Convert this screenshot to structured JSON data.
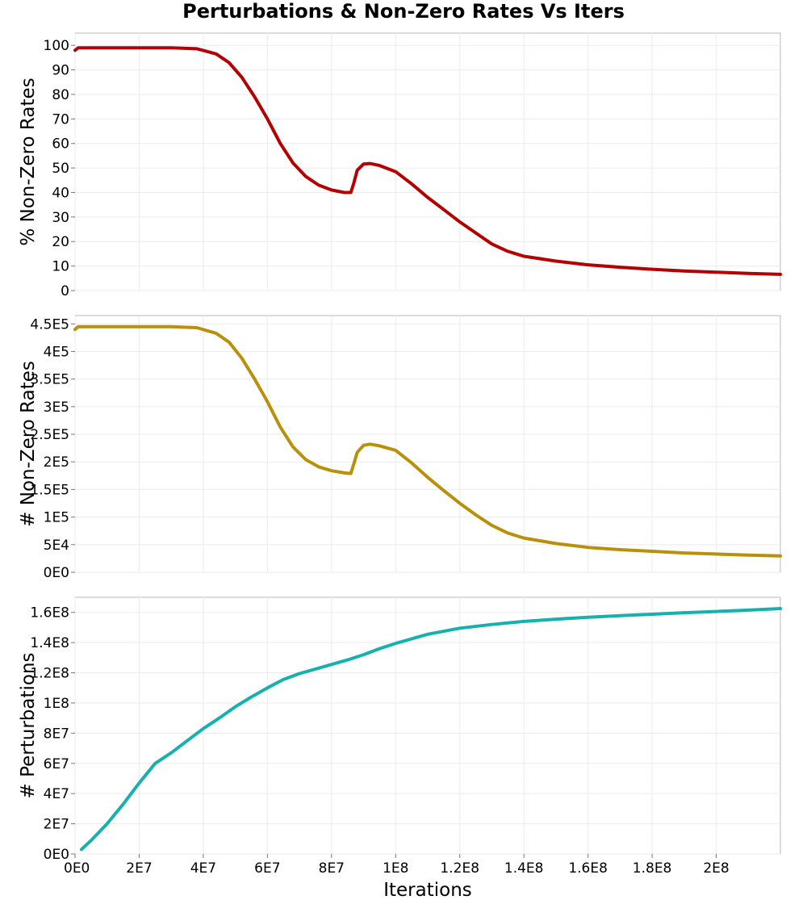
{
  "figure": {
    "title": "Perturbations & Non-Zero Rates Vs Iters"
  },
  "chart_data": [
    {
      "type": "line",
      "ylabel": "% Non-Zero Rates",
      "xlim": [
        0,
        220000000
      ],
      "ylim": [
        0,
        105
      ],
      "y_ticks": [
        0,
        10,
        20,
        30,
        40,
        50,
        60,
        70,
        80,
        90,
        100
      ],
      "y_tick_labels": [
        "0",
        "10",
        "20",
        "30",
        "40",
        "50",
        "60",
        "70",
        "80",
        "90",
        "100"
      ],
      "grid": true,
      "series": [
        {
          "color": "#b30000",
          "x": [
            0,
            1000000,
            5000000,
            20000000,
            30000000,
            38000000,
            44000000,
            48000000,
            52000000,
            56000000,
            60000000,
            64000000,
            68000000,
            72000000,
            76000000,
            80000000,
            84000000,
            86000000,
            87000000,
            88000000,
            90000000,
            92000000,
            95000000,
            100000000,
            105000000,
            110000000,
            115000000,
            120000000,
            125000000,
            130000000,
            135000000,
            140000000,
            150000000,
            160000000,
            170000000,
            180000000,
            190000000,
            200000000,
            210000000,
            220000000
          ],
          "y": [
            98,
            99,
            99,
            99,
            99,
            98.6,
            96.5,
            93,
            87,
            79,
            70,
            60,
            52,
            46.5,
            43,
            41,
            40,
            40,
            44,
            49,
            51.6,
            51.8,
            51,
            48.5,
            43.5,
            38,
            33,
            28,
            23.5,
            19,
            16,
            14,
            12,
            10.5,
            9.5,
            8.7,
            8,
            7.5,
            7,
            6.6
          ]
        }
      ]
    },
    {
      "type": "line",
      "ylabel": "# Non-Zero Rates",
      "xlim": [
        0,
        220000000
      ],
      "ylim": [
        0,
        465000
      ],
      "y_ticks": [
        0,
        50000,
        100000,
        150000,
        200000,
        250000,
        300000,
        350000,
        400000,
        450000
      ],
      "y_tick_labels": [
        "0E0",
        "5E4",
        "1E5",
        "1.5E5",
        "2E5",
        "2.5E5",
        "3E5",
        "3.5E5",
        "4E5",
        "4.5E5"
      ],
      "grid": true,
      "series": [
        {
          "color": "#b8900a",
          "x": [
            0,
            1000000,
            5000000,
            20000000,
            30000000,
            38000000,
            44000000,
            48000000,
            52000000,
            56000000,
            60000000,
            64000000,
            68000000,
            72000000,
            76000000,
            80000000,
            84000000,
            86000000,
            87000000,
            88000000,
            90000000,
            92000000,
            95000000,
            100000000,
            105000000,
            110000000,
            115000000,
            120000000,
            125000000,
            130000000,
            135000000,
            140000000,
            150000000,
            160000000,
            170000000,
            180000000,
            190000000,
            200000000,
            210000000,
            220000000
          ],
          "y": [
            440000,
            445000,
            445000,
            445000,
            445000,
            443000,
            433000,
            417000,
            388000,
            350000,
            309000,
            263000,
            227000,
            204000,
            191000,
            184000,
            180000,
            179000,
            197000,
            217000,
            230000,
            232000,
            229000,
            221000,
            198000,
            172000,
            148000,
            125000,
            104000,
            85000,
            71000,
            62000,
            52000,
            45000,
            41000,
            38000,
            35000,
            33000,
            31000,
            29500
          ]
        }
      ]
    },
    {
      "type": "line",
      "xlabel": "Iterations",
      "ylabel": "# Perturbations",
      "xlim": [
        0,
        220000000
      ],
      "ylim": [
        0,
        170000000
      ],
      "x_ticks": [
        0,
        20000000,
        40000000,
        60000000,
        80000000,
        100000000,
        120000000,
        140000000,
        160000000,
        180000000,
        200000000
      ],
      "x_tick_labels": [
        "0E0",
        "2E7",
        "4E7",
        "6E7",
        "8E7",
        "1E8",
        "1.2E8",
        "1.4E8",
        "1.6E8",
        "1.8E8",
        "2E8"
      ],
      "y_ticks": [
        0,
        20000000,
        40000000,
        60000000,
        80000000,
        100000000,
        120000000,
        140000000,
        160000000
      ],
      "y_tick_labels": [
        "0E0",
        "2E7",
        "4E7",
        "6E7",
        "8E7",
        "1E8",
        "1.2E8",
        "1.4E8",
        "1.6E8"
      ],
      "grid": true,
      "series": [
        {
          "color": "#16b0ae",
          "x": [
            2000000,
            5000000,
            10000000,
            15000000,
            20000000,
            25000000,
            30000000,
            35000000,
            40000000,
            45000000,
            50000000,
            55000000,
            60000000,
            65000000,
            70000000,
            75000000,
            80000000,
            85000000,
            90000000,
            95000000,
            100000000,
            110000000,
            120000000,
            130000000,
            140000000,
            150000000,
            160000000,
            170000000,
            180000000,
            190000000,
            200000000,
            210000000,
            220000000
          ],
          "y": [
            3000000,
            9000000,
            20000000,
            33000000,
            47000000,
            60000000,
            67000000,
            75000000,
            83000000,
            90000000,
            97500000,
            104000000,
            110000000,
            115500000,
            119500000,
            122500000,
            125500000,
            128500000,
            132000000,
            136000000,
            139500000,
            145500000,
            149500000,
            152000000,
            154000000,
            155500000,
            156800000,
            157800000,
            158800000,
            159800000,
            160600000,
            161500000,
            162500000
          ]
        }
      ]
    }
  ]
}
